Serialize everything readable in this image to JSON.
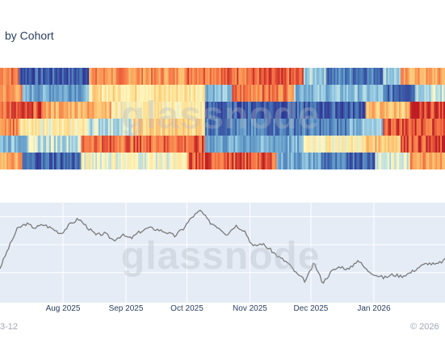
{
  "chart": {
    "title_visible": "by Cohort",
    "watermark": "glassnode",
    "footer_left": "3-12",
    "footer_right": "© 2026"
  },
  "colors": {
    "heat_low": "#2b4ea4",
    "heat_mid": "#fff7c2",
    "heat_high": "#bd1e24",
    "price_line": "#7a7a7a",
    "price_bg": "#e5ecf6",
    "grid": "#ffffff",
    "text": "#2a3f5f"
  },
  "chart_data": [
    {
      "type": "heatmap",
      "rows": 6,
      "columns": 280,
      "x_range": [
        "2025-07-01",
        "2026-02-05"
      ],
      "color_scale": "RdYlBu_r",
      "note_colors": "red=high, yellow=mid, blue=low",
      "row_bands": [
        [
          {
            "from": 0.0,
            "to": 0.04,
            "v": 0.85
          },
          {
            "from": 0.04,
            "to": 0.2,
            "v": 0.08
          },
          {
            "from": 0.2,
            "to": 0.42,
            "v": 0.8
          },
          {
            "from": 0.42,
            "to": 0.68,
            "v": 0.88
          },
          {
            "from": 0.68,
            "to": 0.73,
            "v": 0.35
          },
          {
            "from": 0.73,
            "to": 0.86,
            "v": 0.15
          },
          {
            "from": 0.86,
            "to": 0.9,
            "v": 0.35
          },
          {
            "from": 0.9,
            "to": 1.0,
            "v": 0.75
          }
        ],
        [
          {
            "from": 0.0,
            "to": 0.05,
            "v": 0.8
          },
          {
            "from": 0.05,
            "to": 0.2,
            "v": 0.25
          },
          {
            "from": 0.2,
            "to": 0.46,
            "v": 0.6
          },
          {
            "from": 0.46,
            "to": 0.52,
            "v": 0.3
          },
          {
            "from": 0.52,
            "to": 0.66,
            "v": 0.85
          },
          {
            "from": 0.66,
            "to": 0.86,
            "v": 0.3
          },
          {
            "from": 0.86,
            "to": 0.93,
            "v": 0.12
          },
          {
            "from": 0.93,
            "to": 1.0,
            "v": 0.4
          }
        ],
        [
          {
            "from": 0.0,
            "to": 0.1,
            "v": 0.9
          },
          {
            "from": 0.1,
            "to": 0.25,
            "v": 0.75
          },
          {
            "from": 0.25,
            "to": 0.46,
            "v": 0.55
          },
          {
            "from": 0.46,
            "to": 0.82,
            "v": 0.08
          },
          {
            "from": 0.82,
            "to": 0.92,
            "v": 0.7
          },
          {
            "from": 0.92,
            "to": 1.0,
            "v": 0.95
          }
        ],
        [
          {
            "from": 0.0,
            "to": 0.04,
            "v": 0.85
          },
          {
            "from": 0.04,
            "to": 0.2,
            "v": 0.55
          },
          {
            "from": 0.2,
            "to": 0.3,
            "v": 0.4
          },
          {
            "from": 0.3,
            "to": 0.46,
            "v": 0.65
          },
          {
            "from": 0.46,
            "to": 0.78,
            "v": 0.15
          },
          {
            "from": 0.78,
            "to": 0.86,
            "v": 0.3
          },
          {
            "from": 0.86,
            "to": 1.0,
            "v": 0.92
          }
        ],
        [
          {
            "from": 0.0,
            "to": 0.06,
            "v": 0.3
          },
          {
            "from": 0.06,
            "to": 0.18,
            "v": 0.4
          },
          {
            "from": 0.18,
            "to": 0.46,
            "v": 0.88
          },
          {
            "from": 0.46,
            "to": 0.68,
            "v": 0.25
          },
          {
            "from": 0.68,
            "to": 0.82,
            "v": 0.55
          },
          {
            "from": 0.82,
            "to": 0.9,
            "v": 0.7
          },
          {
            "from": 0.9,
            "to": 1.0,
            "v": 0.92
          }
        ],
        [
          {
            "from": 0.0,
            "to": 0.05,
            "v": 0.75
          },
          {
            "from": 0.05,
            "to": 0.18,
            "v": 0.1
          },
          {
            "from": 0.18,
            "to": 0.42,
            "v": 0.5
          },
          {
            "from": 0.42,
            "to": 0.62,
            "v": 0.9
          },
          {
            "from": 0.62,
            "to": 0.72,
            "v": 0.25
          },
          {
            "from": 0.72,
            "to": 0.84,
            "v": 0.12
          },
          {
            "from": 0.84,
            "to": 0.92,
            "v": 0.45
          },
          {
            "from": 0.92,
            "to": 1.0,
            "v": 0.8
          }
        ]
      ]
    },
    {
      "type": "line",
      "x_range": [
        "2025-07-01",
        "2026-02-05"
      ],
      "x_ticks": [
        "Aug 2025",
        "Sep 2025",
        "Oct 2025",
        "Nov 2025",
        "Dec 2025",
        "Jan 2026"
      ],
      "x_tick_dates": [
        "2025-08-01",
        "2025-09-01",
        "2025-10-01",
        "2025-11-01",
        "2025-12-01",
        "2026-01-01"
      ],
      "y_range": [
        0,
        1
      ],
      "series": [
        {
          "values": [
            0.3,
            0.55,
            0.78,
            0.84,
            0.79,
            0.83,
            0.78,
            0.72,
            0.83,
            0.9,
            0.8,
            0.7,
            0.72,
            0.64,
            0.7,
            0.66,
            0.74,
            0.79,
            0.77,
            0.74,
            0.69,
            0.78,
            0.92,
            1.0,
            0.86,
            0.8,
            0.71,
            0.82,
            0.76,
            0.56,
            0.6,
            0.52,
            0.43,
            0.36,
            0.23,
            0.14,
            0.36,
            0.12,
            0.26,
            0.32,
            0.28,
            0.4,
            0.28,
            0.22,
            0.18,
            0.22,
            0.2,
            0.24,
            0.31,
            0.36,
            0.34,
            0.4
          ]
        }
      ]
    }
  ]
}
